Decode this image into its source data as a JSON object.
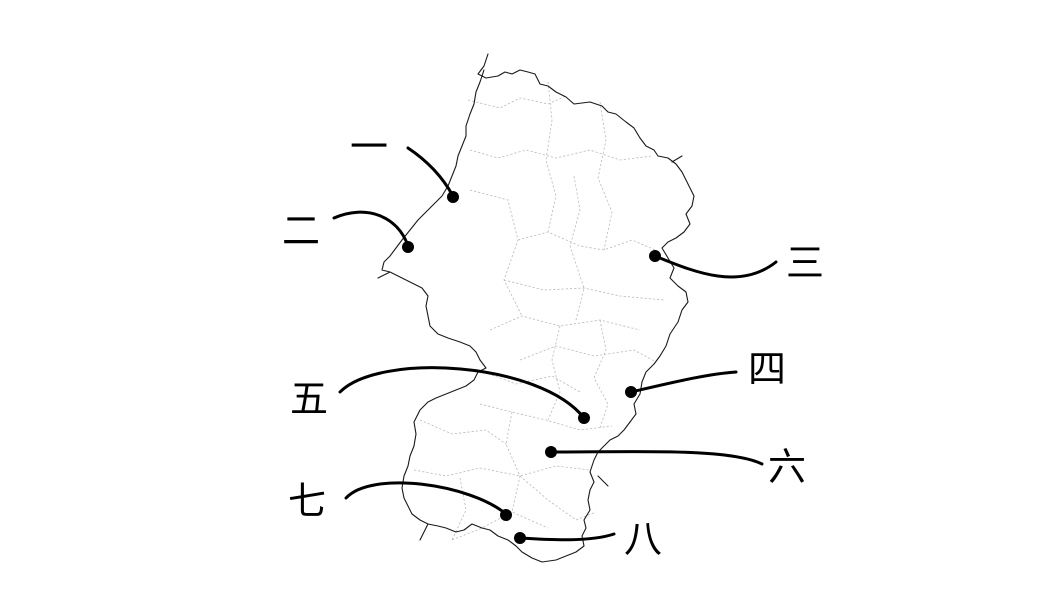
{
  "map": {
    "region": "prefecture-outline",
    "colors": {
      "outline": "#1a1a1a",
      "inner_border": "#b9b9b9",
      "leader": "#000000",
      "background": "#ffffff"
    },
    "callouts": [
      {
        "id": "1",
        "label": "一"
      },
      {
        "id": "2",
        "label": "二"
      },
      {
        "id": "3",
        "label": "三"
      },
      {
        "id": "4",
        "label": "四"
      },
      {
        "id": "5",
        "label": "五"
      },
      {
        "id": "6",
        "label": "六"
      },
      {
        "id": "7",
        "label": "七"
      },
      {
        "id": "8",
        "label": "八"
      }
    ]
  }
}
